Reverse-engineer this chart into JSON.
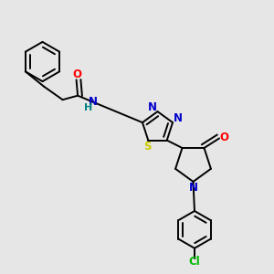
{
  "bg_color": "#e6e6e6",
  "bond_color": "#000000",
  "atom_colors": {
    "N": "#0000cc",
    "O": "#ff0000",
    "S": "#cccc00",
    "Cl": "#00bb00",
    "H": "#008080",
    "C": "#000000"
  },
  "line_width": 1.4
}
